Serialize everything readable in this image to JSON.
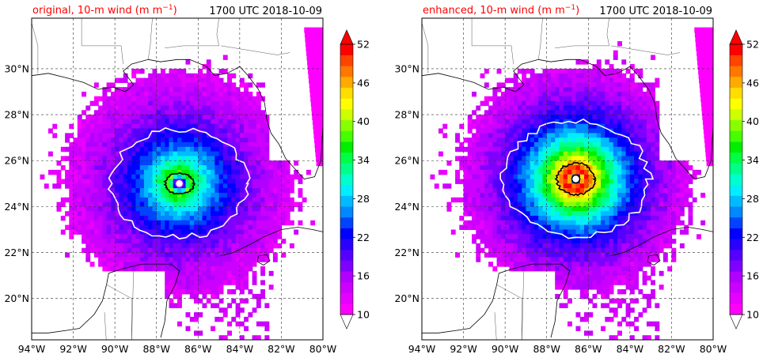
{
  "panels": [
    {
      "id": "original",
      "title_prefix": "original, 10-m wind (m m",
      "title_sup": "−1",
      "title_suffix": ")",
      "time": "1700 UTC 2018-10-09",
      "eye": {
        "lon": -86.9,
        "lat": 25.0
      },
      "intensity": "weak"
    },
    {
      "id": "enhanced",
      "title_prefix": "enhanced, 10-m wind (m m",
      "title_sup": "−1",
      "title_suffix": ")",
      "time": "1700 UTC 2018-10-09",
      "eye": {
        "lon": -86.6,
        "lat": 25.2
      },
      "intensity": "strong"
    }
  ],
  "map": {
    "lon_range": [
      -94,
      -80
    ],
    "lat_range": [
      18.2,
      32.2
    ],
    "lon_ticks": [
      "94°W",
      "92°W",
      "90°W",
      "88°W",
      "86°W",
      "84°W",
      "82°W",
      "80°W"
    ],
    "lat_ticks": [
      "20°N",
      "22°N",
      "24°N",
      "26°N",
      "28°N",
      "30°N"
    ],
    "lon_values": [
      -94,
      -92,
      -90,
      -88,
      -86,
      -84,
      -82,
      -80
    ],
    "lat_values": [
      20,
      22,
      24,
      26,
      28,
      30
    ]
  },
  "colorbar": {
    "tick_labels": [
      "10",
      "16",
      "22",
      "28",
      "34",
      "40",
      "46",
      "52"
    ],
    "tick_values": [
      10,
      16,
      22,
      28,
      34,
      40,
      46,
      52
    ],
    "min": 10,
    "max": 52,
    "colors": [
      "#ff00ff",
      "#e600ff",
      "#cc00ff",
      "#b000ff",
      "#8000ff",
      "#5500ff",
      "#2a00ff",
      "#0000ff",
      "#0044ff",
      "#0088ff",
      "#00bbff",
      "#00eeff",
      "#00ffcc",
      "#00ff88",
      "#00ff44",
      "#00ee00",
      "#44ff00",
      "#88ff00",
      "#ccff00",
      "#ffff00",
      "#ffdd00",
      "#ffaa00",
      "#ff7700",
      "#ff4400",
      "#ff0000"
    ]
  },
  "colors": {
    "title": "#ff0000",
    "contour_white": "#ffffff",
    "contour_black": "#000000",
    "contour_purple": "#9900ff"
  }
}
